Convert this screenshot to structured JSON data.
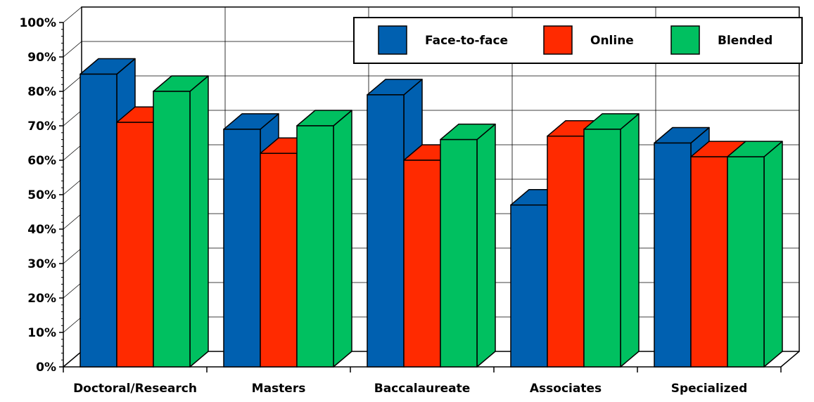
{
  "chart_data": {
    "type": "bar",
    "categories": [
      "Doctoral/Research",
      "Masters",
      "Baccalaureate",
      "Associates",
      "Specialized"
    ],
    "series": [
      {
        "name": "Face-to-face",
        "values": [
          85,
          69,
          79,
          47,
          65
        ]
      },
      {
        "name": "Online",
        "values": [
          71,
          62,
          60,
          67,
          61
        ]
      },
      {
        "name": "Blended",
        "values": [
          80,
          70,
          66,
          69,
          61
        ]
      }
    ],
    "ylim": [
      0,
      100
    ],
    "yticks": [
      "0%",
      "10%",
      "20%",
      "30%",
      "40%",
      "50%",
      "60%",
      "70%",
      "80%",
      "90%",
      "100%"
    ],
    "grid": true,
    "legend_position": "top-right",
    "colors": {
      "Face-to-face": "#0060B0",
      "Online": "#FF2A00",
      "Blended": "#00C060"
    }
  }
}
